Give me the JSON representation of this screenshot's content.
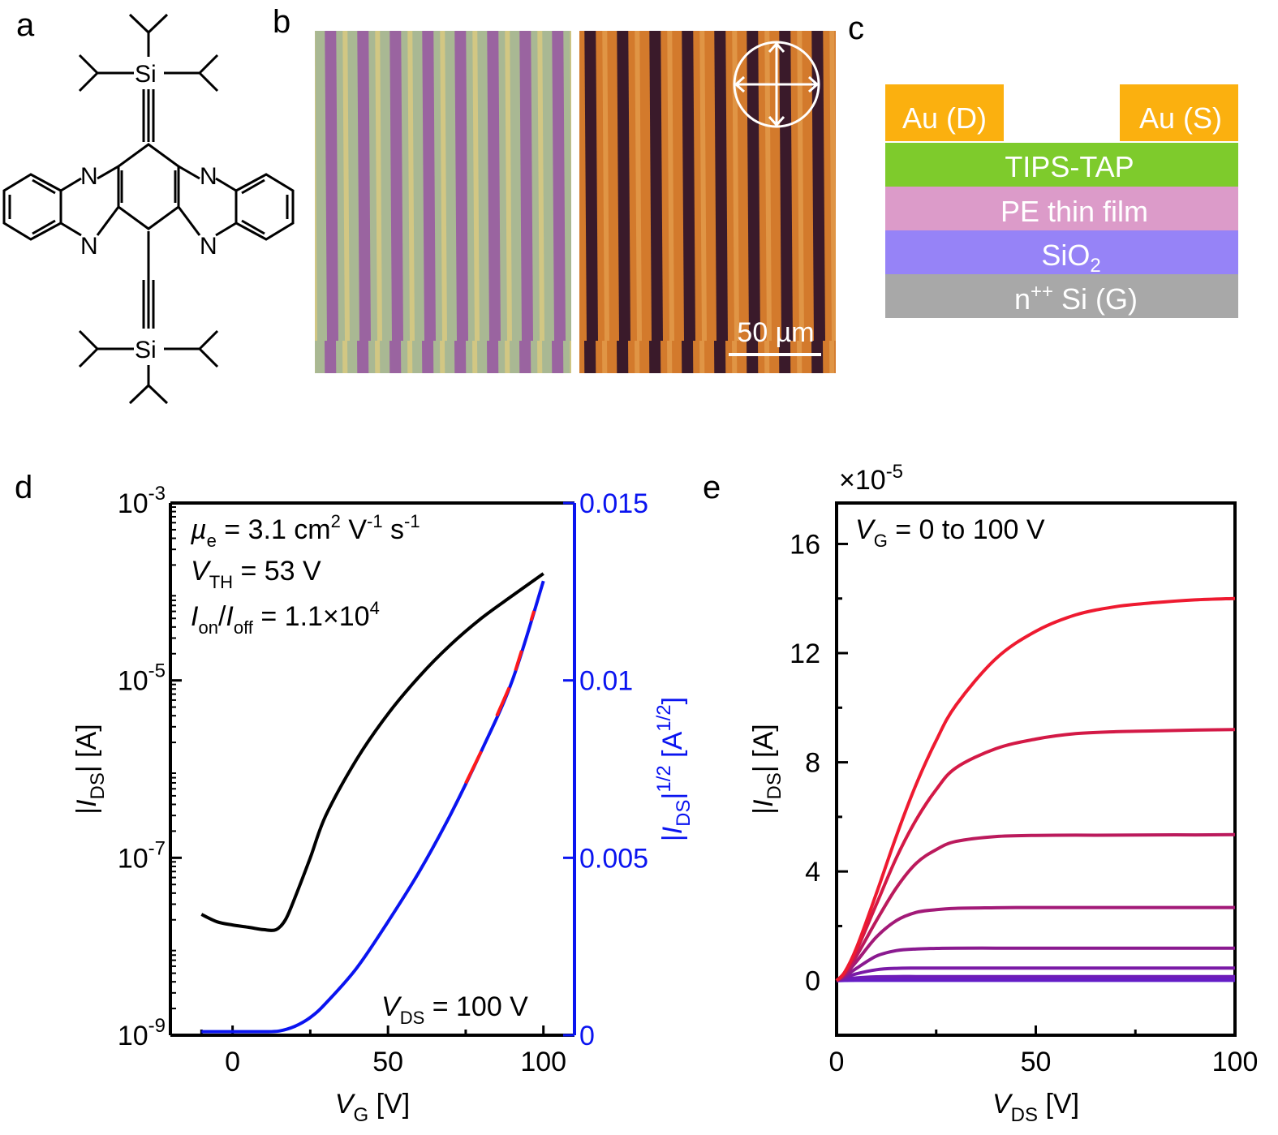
{
  "panels": {
    "a": "a",
    "b": "b",
    "c": "c",
    "d": "d",
    "e": "e"
  },
  "molecule": {
    "atom_si": "Si",
    "atom_n": "N"
  },
  "micrograph": {
    "scale_bar": "50 µm"
  },
  "device_stack": {
    "drain": "Au (D)",
    "source": "Au (S)",
    "semiconductor": "TIPS-TAP",
    "dielectric": "PE thin film",
    "oxide_base": "SiO",
    "oxide_sub": "2",
    "gate_pre": "n",
    "gate_sup": "++",
    "gate_post": " Si (G)",
    "colors": {
      "gold": "#fbb00f",
      "tips_tap": "#7ecb2c",
      "pe": "#dc9bc9",
      "sio2": "#9683f7",
      "si": "#a8a8a8"
    }
  },
  "chart_data": [
    {
      "type": "line",
      "panel": "d",
      "xlabel_main": "V",
      "xlabel_sub": "G",
      "xlabel_unit": " [V]",
      "ylabel_left": {
        "pre": "|I",
        "sub": "DS",
        "post": "| [A]"
      },
      "ylabel_right": {
        "pre": "|I",
        "sub": "DS",
        "mid": "|",
        "sup": "1/2",
        "post": " [A",
        "sup2": "1/2",
        "end": "]"
      },
      "xlim": [
        -20,
        110
      ],
      "x_ticks": [
        "0",
        "50",
        "100"
      ],
      "y_left_scale": "log",
      "y_left_lim": [
        1e-09,
        0.001
      ],
      "y_left_ticks": [
        {
          "base": "10",
          "exp": "-3"
        },
        {
          "base": "10",
          "exp": "-5"
        },
        {
          "base": "10",
          "exp": "-7"
        },
        {
          "base": "10",
          "exp": "-9"
        }
      ],
      "y_right_lim": [
        0,
        0.015
      ],
      "y_right_ticks": [
        "0",
        "0.005",
        "0.01",
        "0.015"
      ],
      "annotations": {
        "mu": {
          "sym": "µ",
          "sub": "e",
          "text": " = 3.1 cm",
          "sup1": "2",
          "t2": " V",
          "sup2": "-1",
          "t3": " s",
          "sup3": "-1"
        },
        "vth": {
          "sym": "V",
          "sub": "TH",
          "text": "  = 53 V"
        },
        "onoff": {
          "sym": "I",
          "sub": "on",
          "mid": "/",
          "sym2": "I",
          "sub2": "off",
          "text": " = 1.1×10",
          "sup": "4"
        },
        "vds": {
          "sym": "V",
          "sub": "DS",
          "text": " = 100 V"
        }
      },
      "colors": {
        "log_curve": "#000000",
        "sqrt_curve": "#0a14f0",
        "fit": "#ff1a1a",
        "right_axis": "#0a14f0"
      },
      "series": [
        {
          "name": "log",
          "axis": "left",
          "x": [
            -10,
            -5,
            0,
            5,
            10,
            14,
            17,
            20,
            25,
            30,
            40,
            50,
            60,
            70,
            80,
            90,
            100
          ],
          "y": [
            2.3e-08,
            1.9e-08,
            1.75e-08,
            1.65e-08,
            1.55e-08,
            1.55e-08,
            2e-08,
            3.5e-08,
            1e-07,
            3e-07,
            1.3e-06,
            4.2e-06,
            1.1e-05,
            2.5e-05,
            5e-05,
            9e-05,
            0.00016
          ]
        },
        {
          "name": "sqrt",
          "axis": "right",
          "x": [
            -10,
            0,
            10,
            15,
            20,
            25,
            30,
            40,
            50,
            60,
            70,
            80,
            90,
            100
          ],
          "y": [
            0.0001,
            0.0001,
            0.0001,
            0.00012,
            0.00025,
            0.0005,
            0.0009,
            0.0019,
            0.0032,
            0.0046,
            0.0062,
            0.008,
            0.01,
            0.0128
          ]
        }
      ],
      "fit_segments": [
        [
          75,
          80
        ],
        [
          85,
          89
        ],
        [
          91,
          93
        ],
        [
          96,
          97
        ]
      ]
    },
    {
      "type": "line",
      "panel": "e",
      "xlabel_main": "V",
      "xlabel_sub": "DS",
      "xlabel_unit": " [V]",
      "ylabel": {
        "pre": "|I",
        "sub": "DS",
        "post": "| [A]"
      },
      "multiplier": {
        "text": "×10",
        "sup": "-5"
      },
      "legend_text": {
        "sym": "V",
        "sub": "G",
        "text": " = 0 to 100 V"
      },
      "xlim": [
        0,
        100
      ],
      "ylim": [
        -2,
        17.5
      ],
      "x_ticks": [
        "0",
        "50",
        "100"
      ],
      "y_ticks": [
        "0",
        "4",
        "8",
        "12",
        "16"
      ],
      "x_values": [
        0,
        2,
        5,
        10,
        15,
        20,
        25,
        30,
        40,
        50,
        60,
        70,
        80,
        90,
        100
      ],
      "series": [
        {
          "color": "#ee1a30",
          "values": [
            0,
            0.3,
            1.2,
            3.2,
            5.3,
            7.2,
            8.8,
            10.1,
            11.8,
            12.8,
            13.4,
            13.7,
            13.85,
            13.95,
            14.0
          ]
        },
        {
          "color": "#d31946",
          "values": [
            0,
            0.3,
            1.1,
            2.8,
            4.5,
            5.9,
            7.0,
            7.8,
            8.5,
            8.85,
            9.05,
            9.12,
            9.15,
            9.18,
            9.2
          ]
        },
        {
          "color": "#bb1a5c",
          "values": [
            0,
            0.25,
            0.9,
            2.2,
            3.4,
            4.3,
            4.8,
            5.1,
            5.28,
            5.32,
            5.33,
            5.33,
            5.34,
            5.34,
            5.35
          ]
        },
        {
          "color": "#a21a78",
          "values": [
            0,
            0.2,
            0.7,
            1.6,
            2.2,
            2.5,
            2.6,
            2.65,
            2.67,
            2.68,
            2.68,
            2.68,
            2.68,
            2.68,
            2.68
          ]
        },
        {
          "color": "#8a1a90",
          "values": [
            0,
            0.15,
            0.45,
            0.9,
            1.1,
            1.16,
            1.18,
            1.19,
            1.19,
            1.19,
            1.19,
            1.19,
            1.19,
            1.19,
            1.19
          ]
        },
        {
          "color": "#7a1aa6",
          "values": [
            0,
            0.1,
            0.25,
            0.4,
            0.45,
            0.46,
            0.46,
            0.46,
            0.46,
            0.46,
            0.46,
            0.46,
            0.46,
            0.46,
            0.46
          ]
        },
        {
          "color": "#6e1cb8",
          "values": [
            0,
            0.05,
            0.1,
            0.14,
            0.15,
            0.15,
            0.15,
            0.15,
            0.15,
            0.15,
            0.15,
            0.15,
            0.15,
            0.15,
            0.15
          ]
        },
        {
          "color": "#661cc4",
          "values": [
            0,
            0.02,
            0.03,
            0.04,
            0.04,
            0.04,
            0.04,
            0.04,
            0.04,
            0.04,
            0.04,
            0.04,
            0.04,
            0.04,
            0.04
          ]
        },
        {
          "color": "#5e1ccc",
          "values": [
            0,
            0.005,
            0.01,
            0.01,
            0.01,
            0.01,
            0.01,
            0.01,
            0.01,
            0.01,
            0.01,
            0.01,
            0.01,
            0.01,
            0.01
          ]
        }
      ]
    }
  ]
}
